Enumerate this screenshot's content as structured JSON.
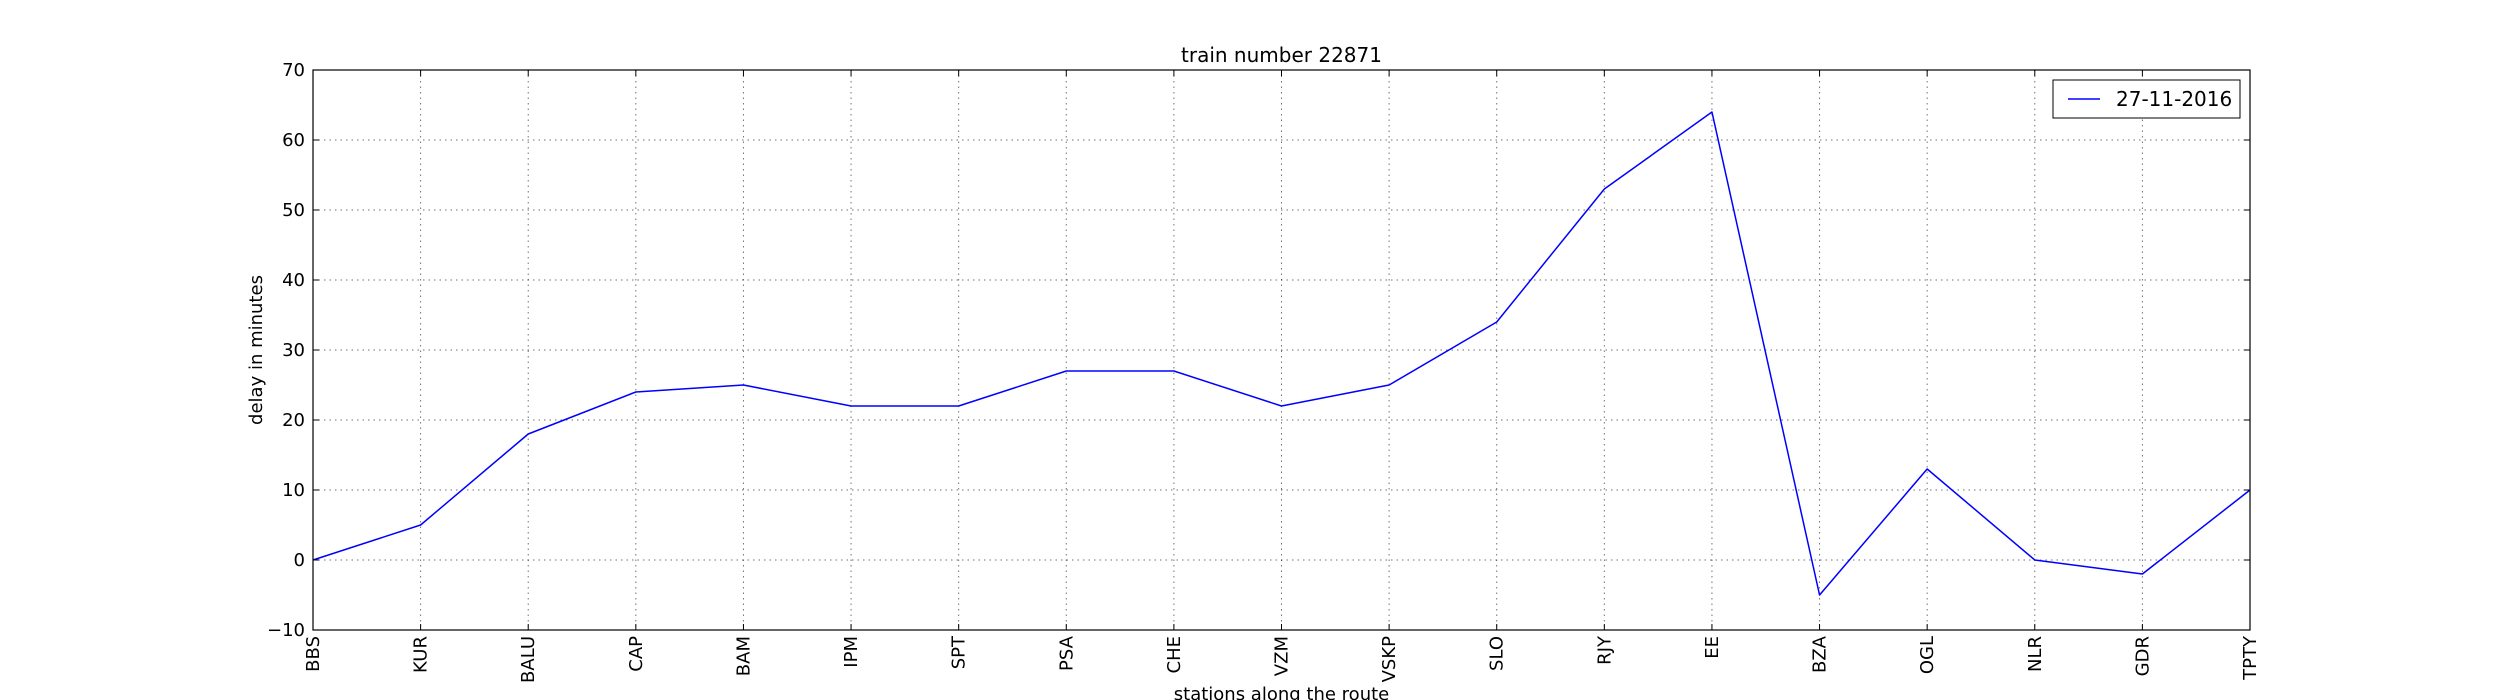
{
  "chart_data": {
    "type": "line",
    "title": "train number 22871",
    "xlabel": "stations along the route",
    "ylabel": "delay in minutes",
    "categories": [
      "BBS",
      "KUR",
      "BALU",
      "CAP",
      "BAM",
      "IPM",
      "SPT",
      "PSA",
      "CHE",
      "VZM",
      "VSKP",
      "SLO",
      "RJY",
      "EE",
      "BZA",
      "OGL",
      "NLR",
      "GDR",
      "TPTY"
    ],
    "series": [
      {
        "name": "27-11-2016",
        "values": [
          0,
          5,
          18,
          24,
          25,
          22,
          22,
          27,
          27,
          22,
          25,
          34,
          53,
          64,
          -5,
          13,
          0,
          -2,
          10
        ],
        "color": "#0000ff"
      }
    ],
    "ylim": [
      -10,
      70
    ],
    "yticks": [
      -10,
      0,
      10,
      20,
      30,
      40,
      50,
      60,
      70
    ],
    "grid": true,
    "legend_position": "top-right"
  }
}
